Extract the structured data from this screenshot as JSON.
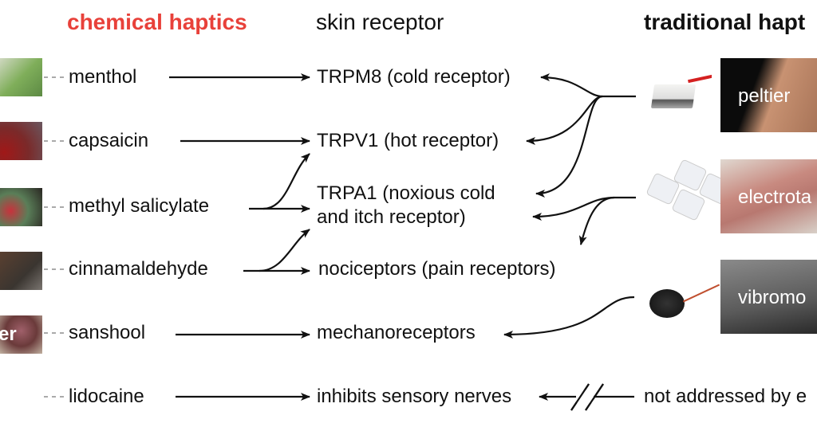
{
  "headers": {
    "chemical": "chemical haptics",
    "receptor": "skin receptor",
    "traditional": "traditional hapt"
  },
  "colors": {
    "chemical_heading": "#e8413a",
    "text": "#111111"
  },
  "chemicals": [
    "menthol",
    "capsaicin",
    "methyl salicylate",
    "cinnamaldehyde",
    "sanshool",
    "lidocaine"
  ],
  "chemical_image_caption": "er",
  "receptors": [
    "TRPM8 (cold receptor)",
    "TRPV1 (hot receptor)",
    "TRPA1 (noxious cold",
    "and itch receptor)",
    "nociceptors (pain receptors)",
    "mechanoreceptors",
    "inhibits sensory nerves"
  ],
  "traditional": [
    "peltier",
    "electrota",
    "vibromo"
  ],
  "not_addressed": "not addressed by e"
}
